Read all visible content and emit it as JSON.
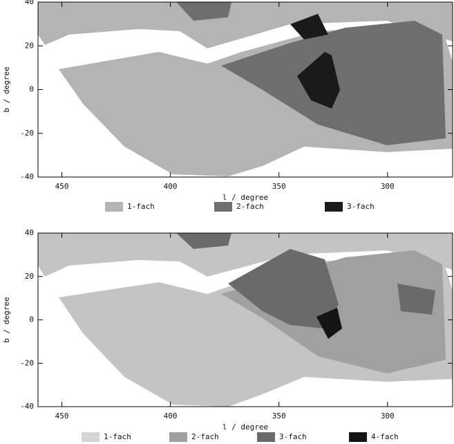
{
  "chart_data": [
    {
      "type": "coverage",
      "xlabel": "l / degree",
      "ylabel": "b / degree",
      "xlim": [
        461,
        270
      ],
      "ylim": [
        -40,
        40
      ],
      "xticks": [
        450,
        400,
        350,
        300
      ],
      "yticks": [
        -40,
        -20,
        0,
        20,
        40
      ],
      "legend": [
        {
          "name": "1-fach",
          "color": "#b4b4b4"
        },
        {
          "name": "2-fach",
          "color": "#6e6e6e"
        },
        {
          "name": "3-fach",
          "color": "#1a1a1a"
        }
      ]
    },
    {
      "type": "coverage",
      "xlabel": "l / degree",
      "ylabel": "b / degree",
      "xlim": [
        461,
        270
      ],
      "ylim": [
        -40,
        40
      ],
      "xticks": [
        450,
        400,
        350,
        300
      ],
      "yticks": [
        -40,
        -20,
        0,
        20,
        40
      ],
      "legend": [
        {
          "name": "1-fach",
          "color": "#d4d4d4"
        },
        {
          "name": "2-fach",
          "color": "#a0a0a0"
        },
        {
          "name": "3-fach",
          "color": "#6a6a6a"
        },
        {
          "name": "4-fach",
          "color": "#141414"
        }
      ]
    }
  ]
}
